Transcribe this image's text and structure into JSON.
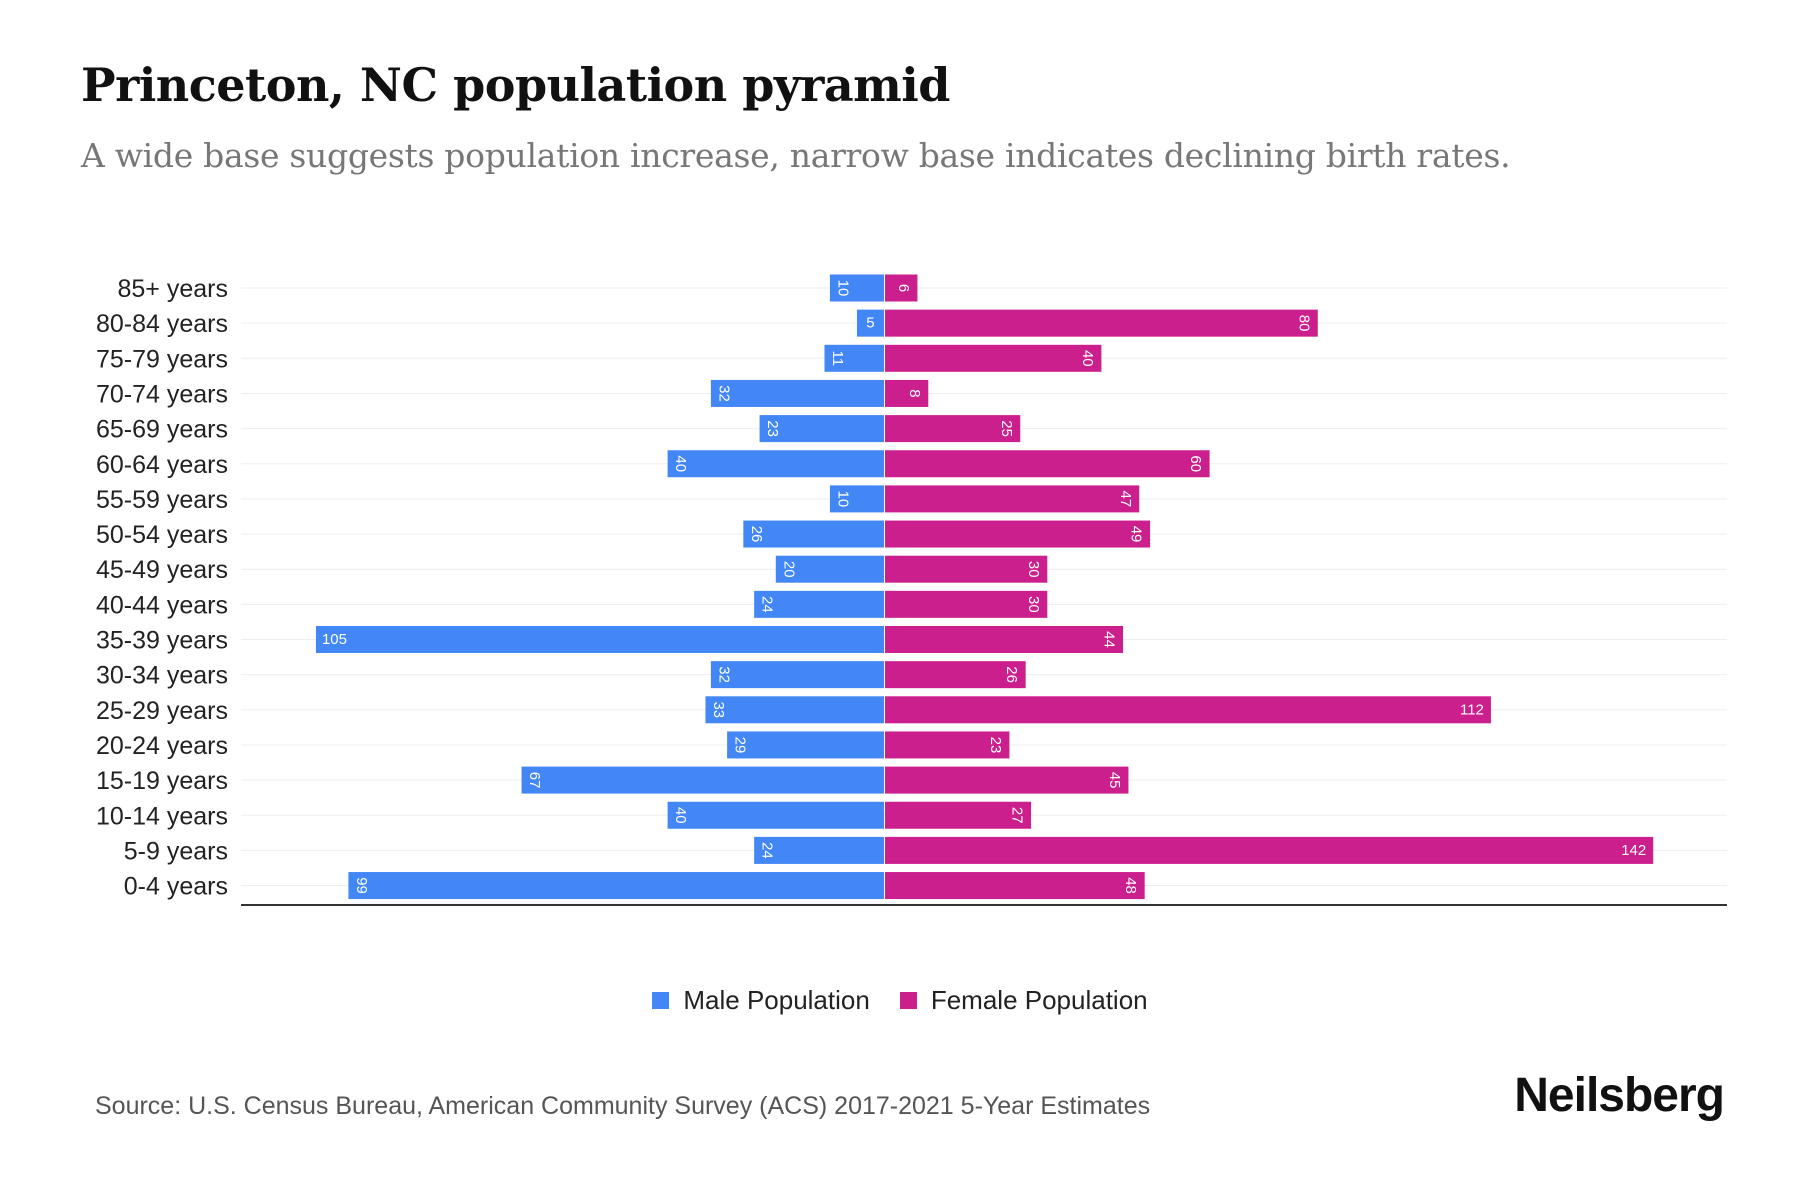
{
  "title": "Princeton, NC population pyramid",
  "subtitle": "A wide base suggests population increase, narrow base indicates declining birth rates.",
  "source": "Source: U.S. Census Bureau, American Community Survey (ACS) 2017-2021 5-Year Estimates",
  "logo": "Neilsberg",
  "colors": {
    "male": "#4287f5",
    "female": "#cc1f8e"
  },
  "chart_data": {
    "type": "bar",
    "orientation": "horizontal-pyramid",
    "title": "Princeton, NC population pyramid",
    "categories": [
      "85+ years",
      "80-84 years",
      "75-79 years",
      "70-74 years",
      "65-69 years",
      "60-64 years",
      "55-59 years",
      "50-54 years",
      "45-49 years",
      "40-44 years",
      "35-39 years",
      "30-34 years",
      "25-29 years",
      "20-24 years",
      "15-19 years",
      "10-14 years",
      "5-9 years",
      "0-4 years"
    ],
    "series": [
      {
        "name": "Male Population",
        "values": [
          10,
          5,
          11,
          32,
          23,
          40,
          10,
          26,
          20,
          24,
          105,
          32,
          33,
          29,
          67,
          40,
          24,
          99
        ]
      },
      {
        "name": "Female Population",
        "values": [
          6,
          80,
          40,
          8,
          25,
          60,
          47,
          49,
          30,
          30,
          44,
          26,
          112,
          23,
          45,
          27,
          142,
          48
        ]
      }
    ],
    "legend": "bottom-center",
    "grid": true
  }
}
